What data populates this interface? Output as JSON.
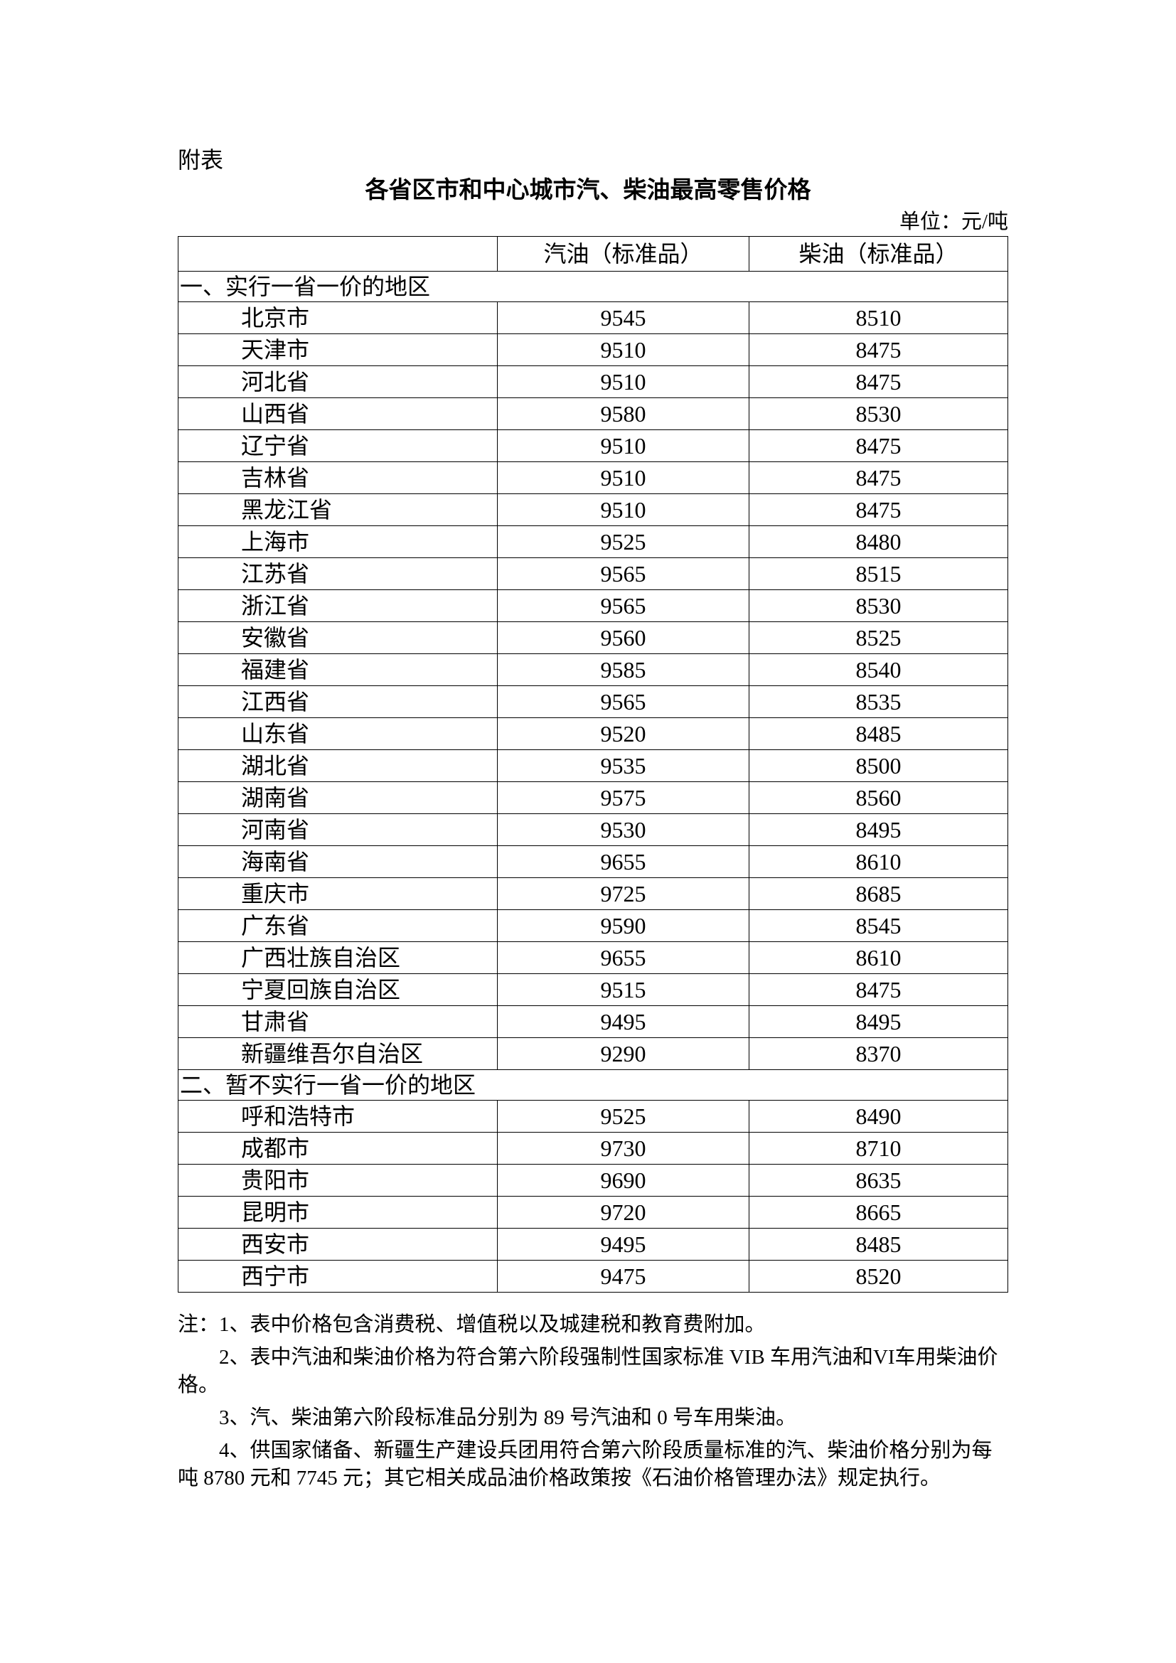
{
  "appendix_label": "附表",
  "title": "各省区市和中心城市汽、柴油最高零售价格",
  "unit": "单位：元/吨",
  "table": {
    "headers": [
      "",
      "汽油（标准品）",
      "柴油（标准品）"
    ],
    "sections": [
      {
        "label": "一、实行一省一价的地区",
        "rows": [
          [
            "北京市",
            "9545",
            "8510"
          ],
          [
            "天津市",
            "9510",
            "8475"
          ],
          [
            "河北省",
            "9510",
            "8475"
          ],
          [
            "山西省",
            "9580",
            "8530"
          ],
          [
            "辽宁省",
            "9510",
            "8475"
          ],
          [
            "吉林省",
            "9510",
            "8475"
          ],
          [
            "黑龙江省",
            "9510",
            "8475"
          ],
          [
            "上海市",
            "9525",
            "8480"
          ],
          [
            "江苏省",
            "9565",
            "8515"
          ],
          [
            "浙江省",
            "9565",
            "8530"
          ],
          [
            "安徽省",
            "9560",
            "8525"
          ],
          [
            "福建省",
            "9585",
            "8540"
          ],
          [
            "江西省",
            "9565",
            "8535"
          ],
          [
            "山东省",
            "9520",
            "8485"
          ],
          [
            "湖北省",
            "9535",
            "8500"
          ],
          [
            "湖南省",
            "9575",
            "8560"
          ],
          [
            "河南省",
            "9530",
            "8495"
          ],
          [
            "海南省",
            "9655",
            "8610"
          ],
          [
            "重庆市",
            "9725",
            "8685"
          ],
          [
            "广东省",
            "9590",
            "8545"
          ],
          [
            "广西壮族自治区",
            "9655",
            "8610"
          ],
          [
            "宁夏回族自治区",
            "9515",
            "8475"
          ],
          [
            "甘肃省",
            "9495",
            "8495"
          ],
          [
            "新疆维吾尔自治区",
            "9290",
            "8370"
          ]
        ]
      },
      {
        "label": "二、暂不实行一省一价的地区",
        "rows": [
          [
            "呼和浩特市",
            "9525",
            "8490"
          ],
          [
            "成都市",
            "9730",
            "8710"
          ],
          [
            "贵阳市",
            "9690",
            "8635"
          ],
          [
            "昆明市",
            "9720",
            "8665"
          ],
          [
            "西安市",
            "9495",
            "8485"
          ],
          [
            "西宁市",
            "9475",
            "8520"
          ]
        ]
      }
    ]
  },
  "notes": [
    "注：1、表中价格包含消费税、增值税以及城建税和教育费附加。",
    "2、表中汽油和柴油价格为符合第六阶段强制性国家标准 VIB 车用汽油和VI车用柴油价格。",
    "3、汽、柴油第六阶段标准品分别为 89 号汽油和 0 号车用柴油。",
    "4、供国家储备、新疆生产建设兵团用符合第六阶段质量标准的汽、柴油价格分别为每吨 8780 元和 7745 元；其它相关成品油价格政策按《石油价格管理办法》规定执行。"
  ]
}
